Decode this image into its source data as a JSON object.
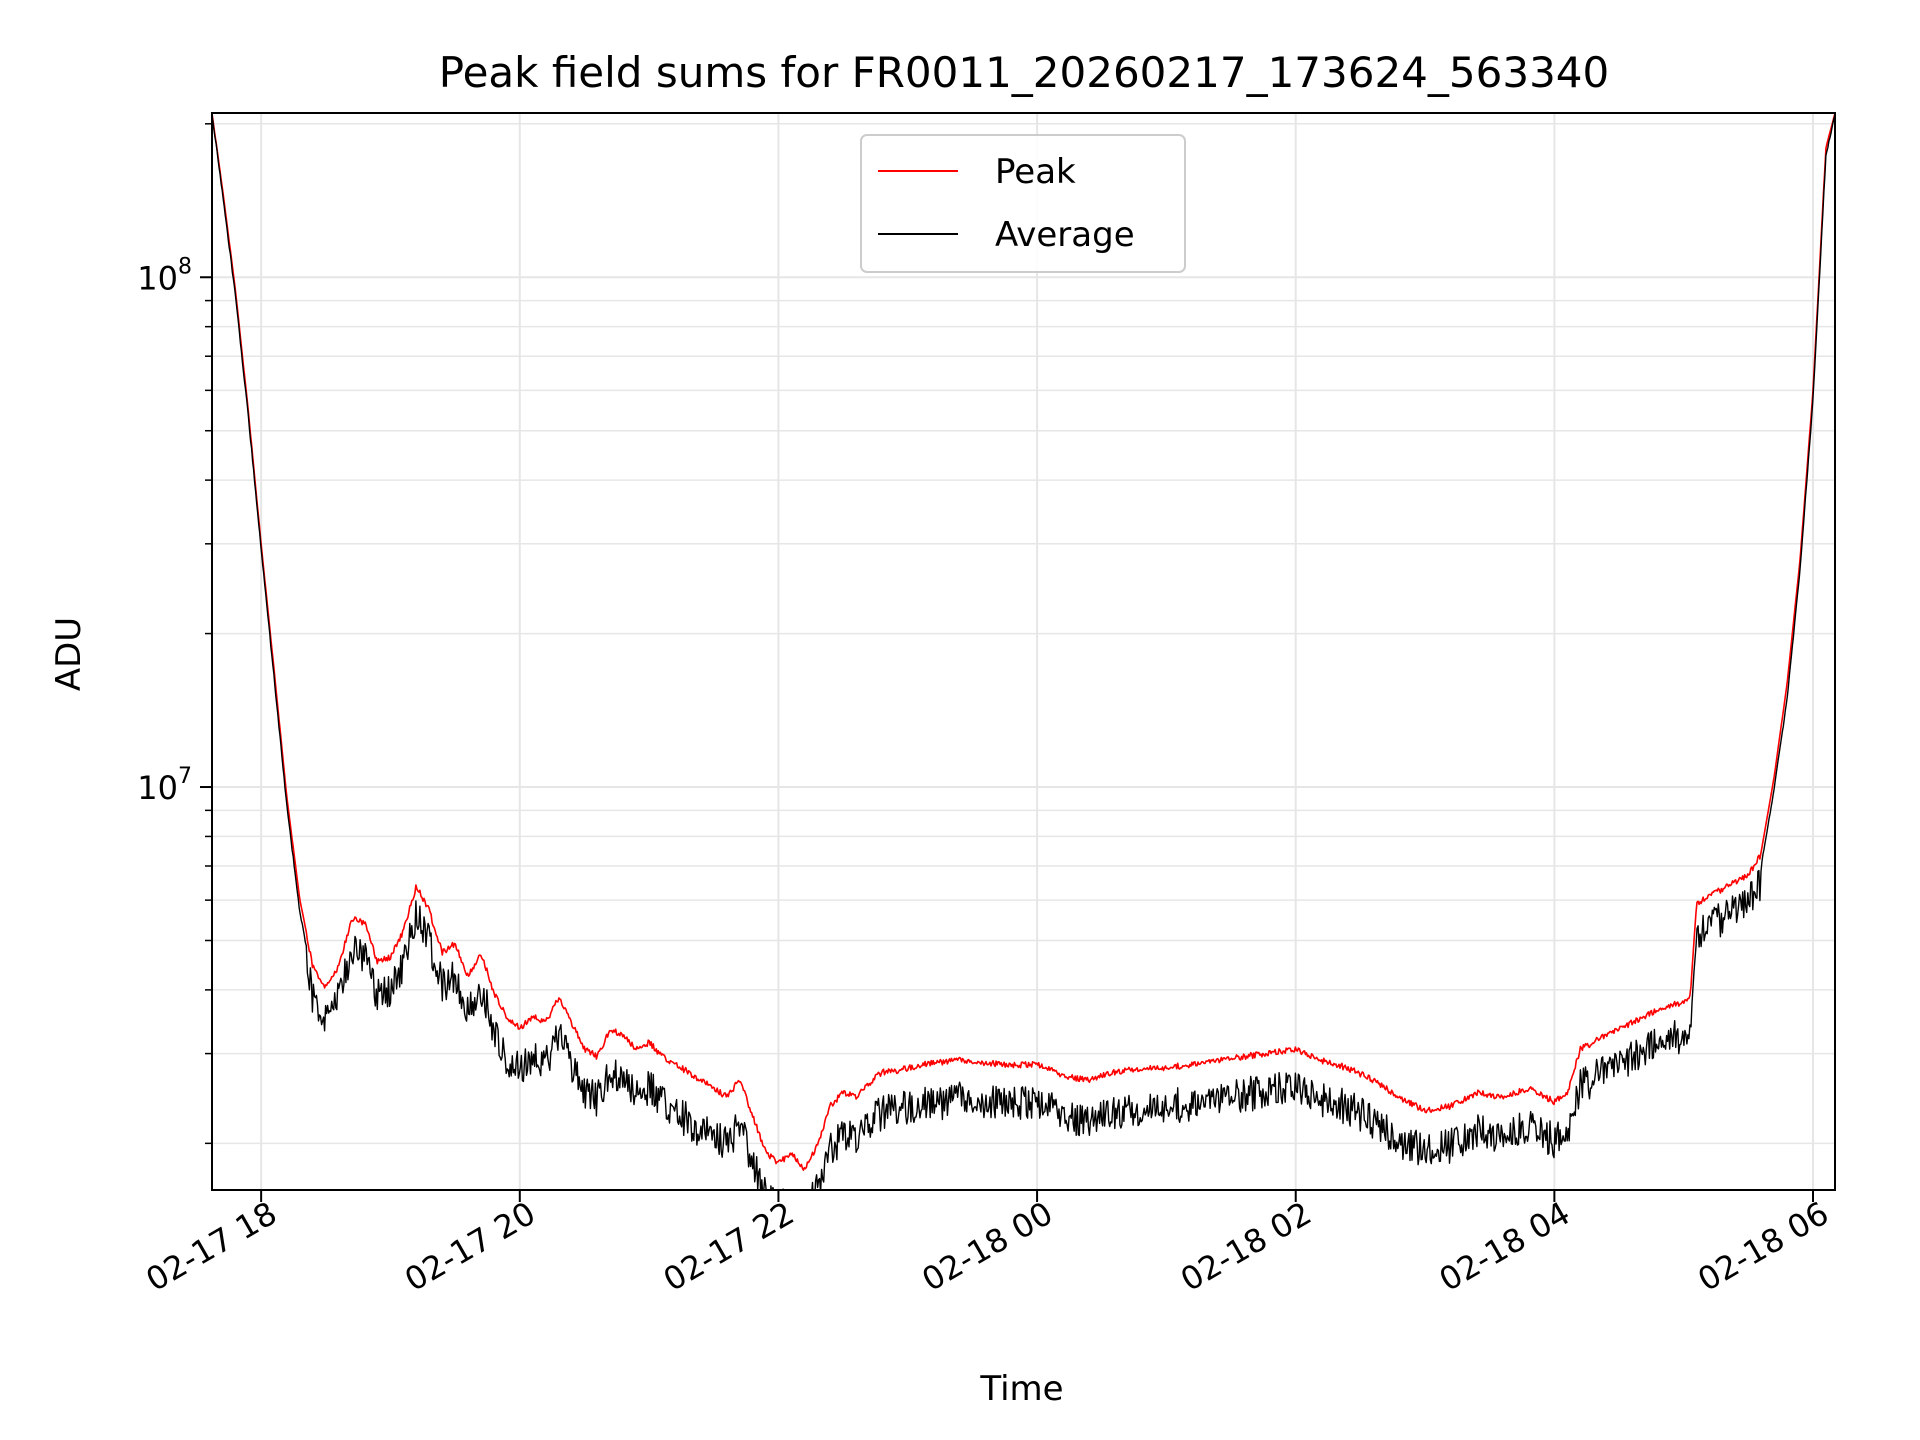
{
  "chart_data": {
    "type": "line",
    "title": "Peak field sums for FR0011_20260217_173624_563340",
    "xlabel": "Time",
    "ylabel": "ADU",
    "yscale": "log",
    "ylim": [
      1620000,
      210000000
    ],
    "xlim_hours": [
      17.62,
      30.17
    ],
    "grid": true,
    "legend_position": "top-center",
    "x_ticks": [
      {
        "hour": 18,
        "label": "02-17 18"
      },
      {
        "hour": 20,
        "label": "02-17 20"
      },
      {
        "hour": 22,
        "label": "02-17 22"
      },
      {
        "hour": 24,
        "label": "02-18 00"
      },
      {
        "hour": 26,
        "label": "02-18 02"
      },
      {
        "hour": 28,
        "label": "02-18 04"
      },
      {
        "hour": 30,
        "label": "02-18 06"
      }
    ],
    "y_ticks": [
      {
        "value": 10000000,
        "base": "10",
        "exp": "7"
      },
      {
        "value": 100000000,
        "base": "10",
        "exp": "8"
      }
    ],
    "series": [
      {
        "name": "Peak",
        "color": "#ff0000",
        "x_hours": [
          17.62,
          17.7,
          17.8,
          17.9,
          18.0,
          18.1,
          18.2,
          18.3,
          18.4,
          18.5,
          18.6,
          18.7,
          18.8,
          18.9,
          19.0,
          19.1,
          19.2,
          19.3,
          19.4,
          19.5,
          19.6,
          19.7,
          19.8,
          19.9,
          20.0,
          20.1,
          20.2,
          20.3,
          20.4,
          20.5,
          20.6,
          20.7,
          20.8,
          20.9,
          21.0,
          21.1,
          21.2,
          21.3,
          21.4,
          21.5,
          21.6,
          21.7,
          21.8,
          21.9,
          22.0,
          22.1,
          22.2,
          22.3,
          22.4,
          22.5,
          22.6,
          22.7,
          22.8,
          22.9,
          23.0,
          23.2,
          23.4,
          23.6,
          23.8,
          24.0,
          24.2,
          24.4,
          24.6,
          24.8,
          25.0,
          25.2,
          25.4,
          25.6,
          25.8,
          26.0,
          26.2,
          26.4,
          26.6,
          26.8,
          27.0,
          27.2,
          27.4,
          27.6,
          27.8,
          28.0,
          28.1,
          28.2,
          28.4,
          28.6,
          28.8,
          29.0,
          29.05,
          29.1,
          29.3,
          29.5,
          29.6,
          29.7,
          29.8,
          29.9,
          30.0,
          30.1,
          30.17
        ],
        "values": [
          210000000,
          150000000,
          95000000,
          55000000,
          30000000,
          17000000,
          9500000,
          6000000,
          4500000,
          4100000,
          4500000,
          5600000,
          5500000,
          4600000,
          4700000,
          5300000,
          6500000,
          5800000,
          4800000,
          5000000,
          4300000,
          4800000,
          4000000,
          3600000,
          3400000,
          3600000,
          3500000,
          3900000,
          3500000,
          3100000,
          3000000,
          3400000,
          3300000,
          3100000,
          3200000,
          3000000,
          2900000,
          2800000,
          2700000,
          2600000,
          2500000,
          2700000,
          2300000,
          1950000,
          1850000,
          1950000,
          1800000,
          2000000,
          2400000,
          2550000,
          2500000,
          2650000,
          2800000,
          2800000,
          2850000,
          2920000,
          2950000,
          2920000,
          2880000,
          2900000,
          2750000,
          2700000,
          2800000,
          2850000,
          2850000,
          2900000,
          2950000,
          3000000,
          3050000,
          3100000,
          2950000,
          2850000,
          2700000,
          2500000,
          2350000,
          2400000,
          2550000,
          2500000,
          2600000,
          2450000,
          2550000,
          3100000,
          3300000,
          3500000,
          3700000,
          3850000,
          3950000,
          6000000,
          6400000,
          6800000,
          7500000,
          10500000,
          16000000,
          28000000,
          60000000,
          180000000,
          210000000
        ]
      },
      {
        "name": "Average",
        "color": "#000000",
        "x_hours": [
          17.62,
          17.7,
          17.8,
          17.9,
          18.0,
          18.1,
          18.2,
          18.3,
          18.4,
          18.5,
          18.6,
          18.7,
          18.8,
          18.9,
          19.0,
          19.1,
          19.2,
          19.3,
          19.4,
          19.5,
          19.6,
          19.7,
          19.8,
          19.9,
          20.0,
          20.1,
          20.2,
          20.3,
          20.4,
          20.5,
          20.6,
          20.7,
          20.8,
          20.9,
          21.0,
          21.1,
          21.2,
          21.3,
          21.4,
          21.5,
          21.6,
          21.7,
          21.8,
          21.9,
          22.0,
          22.1,
          22.2,
          22.3,
          22.4,
          22.5,
          22.6,
          22.7,
          22.8,
          22.9,
          23.0,
          23.2,
          23.4,
          23.6,
          23.8,
          24.0,
          24.2,
          24.4,
          24.6,
          24.8,
          25.0,
          25.2,
          25.4,
          25.6,
          25.8,
          26.0,
          26.2,
          26.4,
          26.6,
          26.8,
          27.0,
          27.2,
          27.4,
          27.6,
          27.8,
          28.0,
          28.1,
          28.2,
          28.4,
          28.6,
          28.8,
          29.0,
          29.05,
          29.1,
          29.3,
          29.5,
          29.6,
          29.7,
          29.8,
          29.9,
          30.0,
          30.1,
          30.17
        ],
        "values": [
          210000000,
          148000000,
          93000000,
          54000000,
          29500000,
          16500000,
          9200000,
          5700000,
          4200000,
          3800000,
          4200000,
          5200000,
          5100000,
          4200000,
          4300000,
          4900000,
          6200000,
          5400000,
          4400000,
          4600000,
          3900000,
          4400000,
          3600000,
          3200000,
          3000000,
          3200000,
          3100000,
          3500000,
          3100000,
          2700000,
          2650000,
          3000000,
          2900000,
          2700000,
          2800000,
          2600000,
          2500000,
          2400000,
          2300000,
          2250000,
          2150000,
          2350000,
          2000000,
          1700000,
          1620000,
          1700000,
          1600000,
          1750000,
          2100000,
          2250000,
          2200000,
          2350000,
          2500000,
          2500000,
          2550000,
          2600000,
          2650000,
          2620000,
          2580000,
          2600000,
          2450000,
          2400000,
          2500000,
          2550000,
          2550000,
          2600000,
          2650000,
          2700000,
          2750000,
          2800000,
          2650000,
          2550000,
          2400000,
          2200000,
          2100000,
          2150000,
          2300000,
          2250000,
          2350000,
          2200000,
          2300000,
          2800000,
          3000000,
          3200000,
          3400000,
          3550000,
          3650000,
          5600000,
          6000000,
          6400000,
          7100000,
          10000000,
          15000000,
          27000000,
          58000000,
          175000000,
          210000000
        ]
      }
    ]
  }
}
